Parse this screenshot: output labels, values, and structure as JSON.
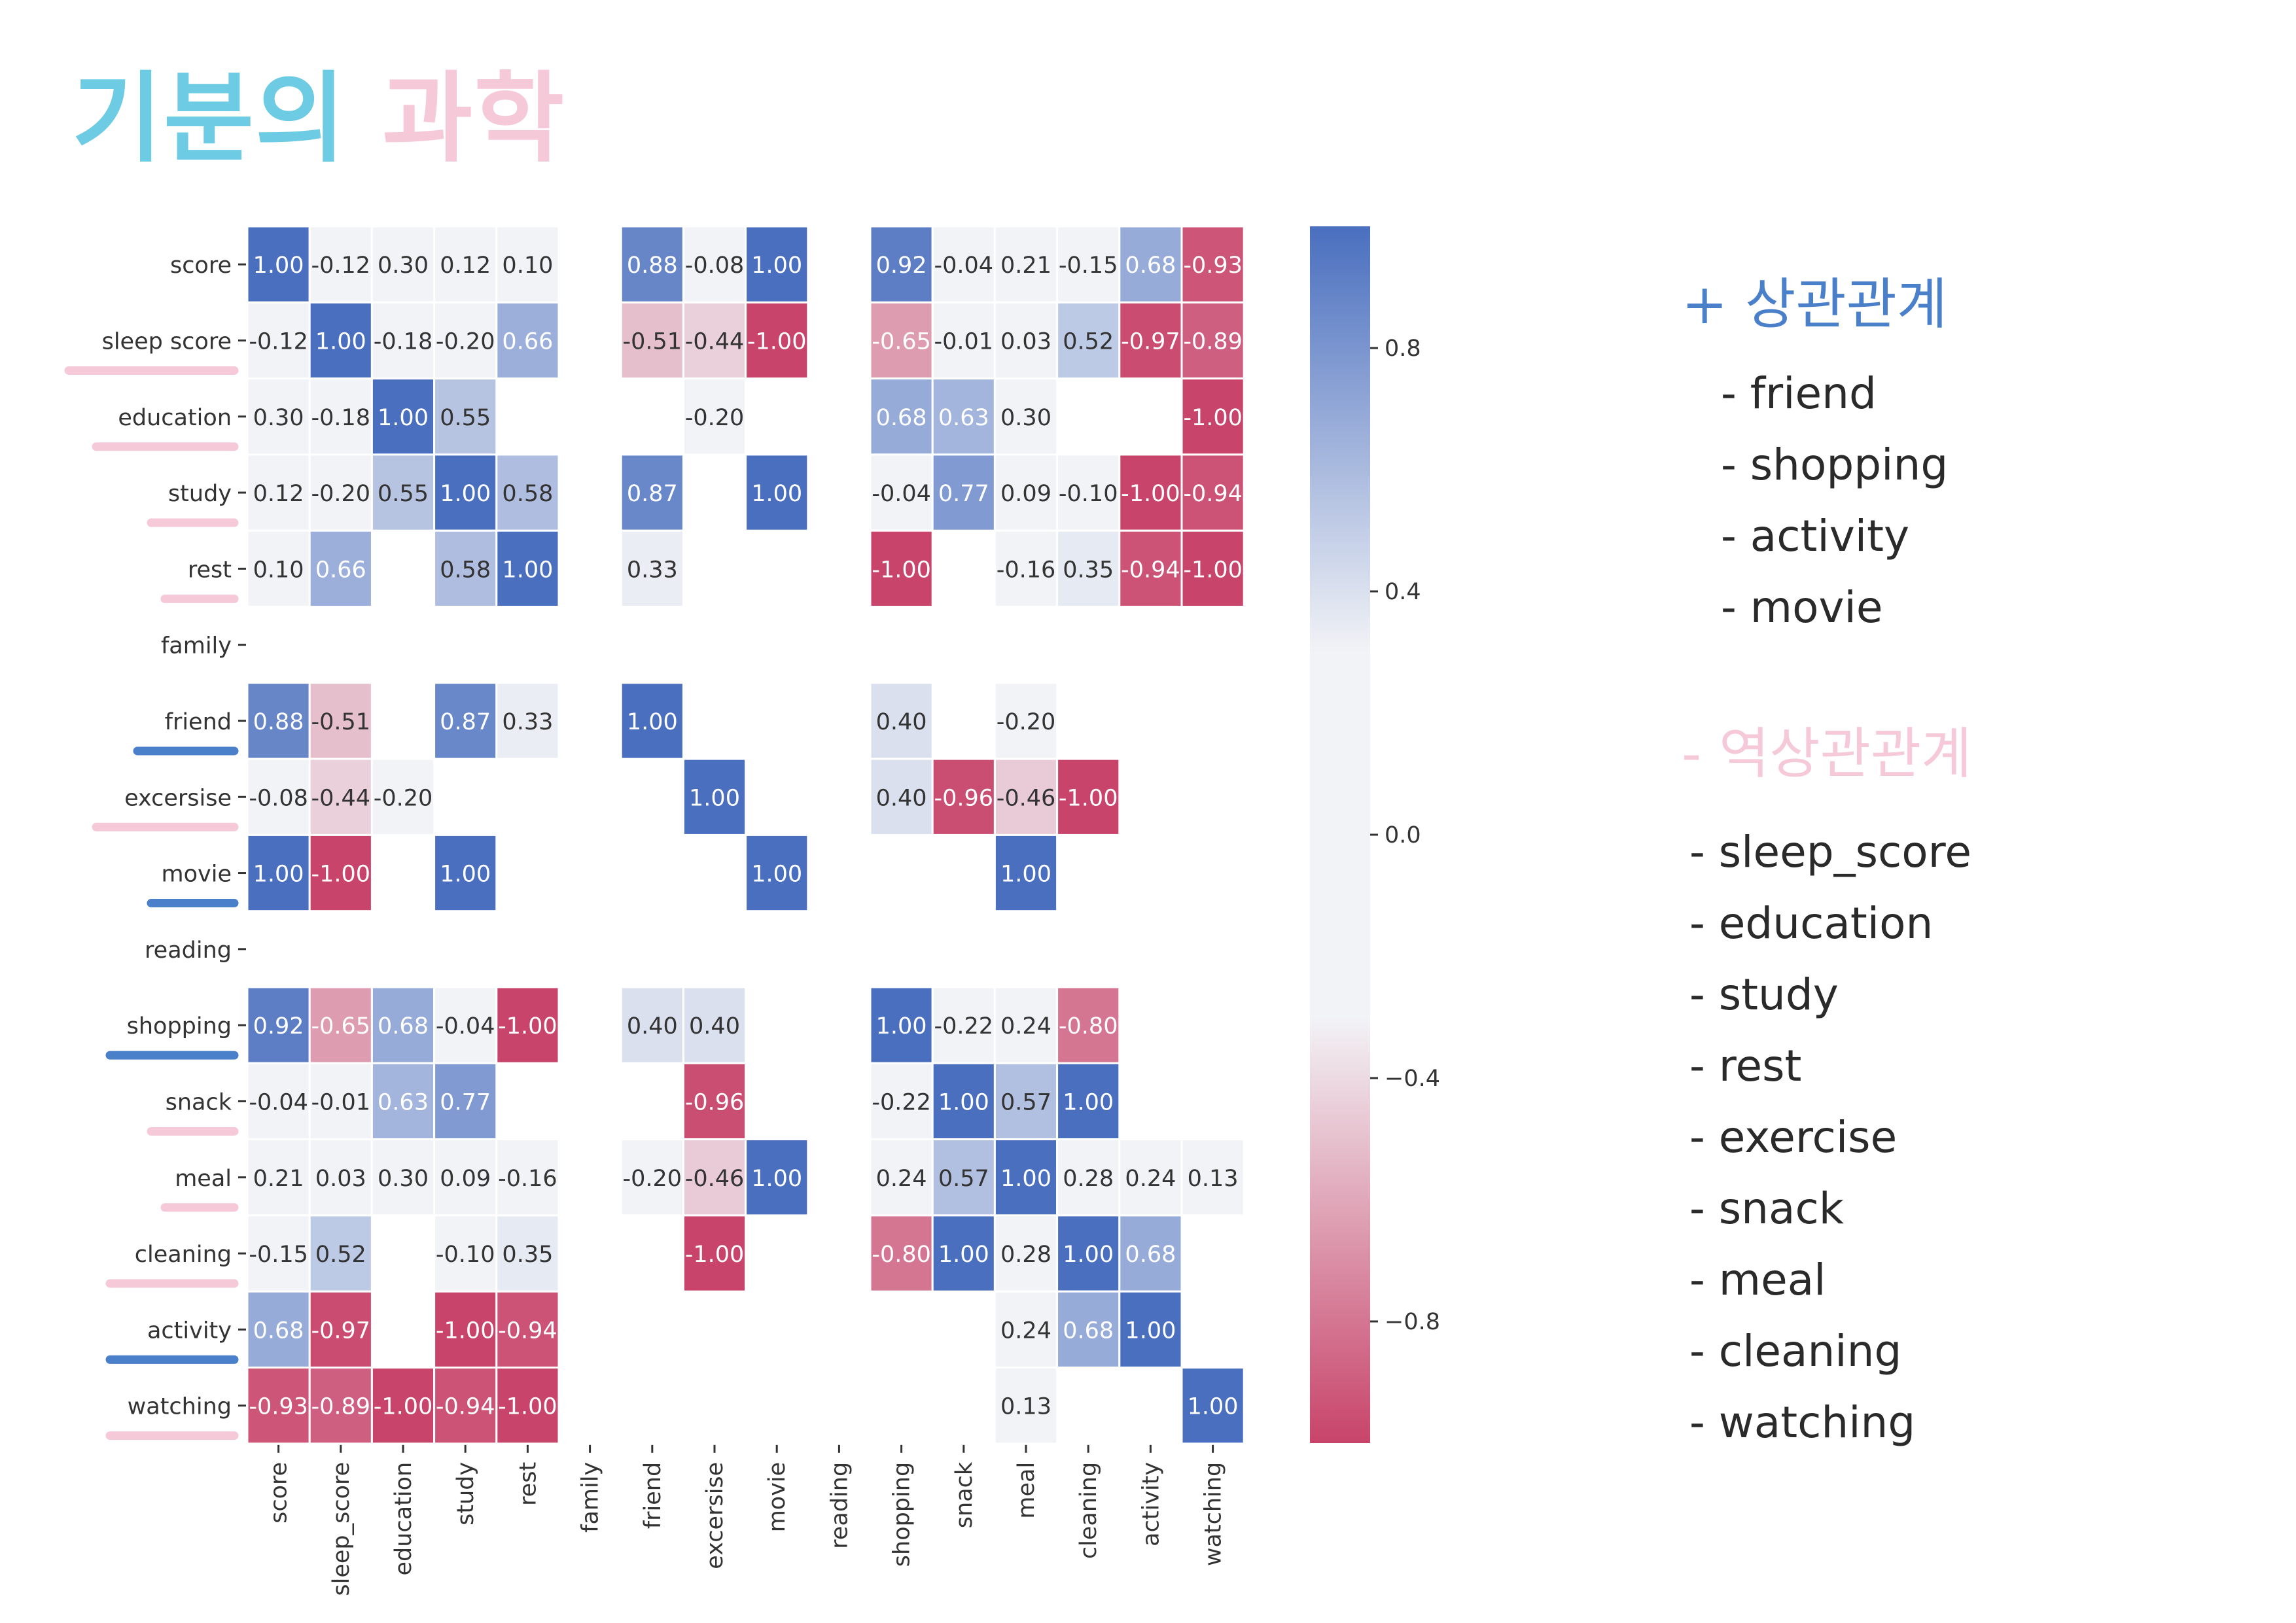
{
  "page": {
    "title_part1": "기분의",
    "title_part2": "과학"
  },
  "legend_blocks": {
    "positive": {
      "heading": "+ 상관관계",
      "items": [
        "- friend",
        "- shopping",
        "- activity",
        "- movie"
      ]
    },
    "negative": {
      "heading": "- 역상관관계",
      "items": [
        "- sleep_score",
        "- education",
        "- study",
        "- rest",
        "- exercise",
        "- snack",
        "- meal",
        "- cleaning",
        "- watching"
      ]
    }
  },
  "colors": {
    "positive": "#4a6fbf",
    "neutral": "#f2f3f6",
    "negative": "#c8446a",
    "underline_pos": "#4a7fc9",
    "underline_neg": "#f6c9d8"
  },
  "chart_data": {
    "type": "heatmap",
    "title": "",
    "row_labels": [
      "score",
      "sleep_score",
      "education",
      "study",
      "rest",
      "family",
      "friend",
      "excersise",
      "movie",
      "reading",
      "shopping",
      "snack",
      "meal",
      "cleaning",
      "activity",
      "watching"
    ],
    "row_label_text": [
      "score",
      "sleep score",
      "education",
      "study",
      "rest",
      "family",
      "friend",
      "excersise",
      "movie",
      "reading",
      "shopping",
      "snack",
      "meal",
      "cleaning",
      "activity",
      "watching"
    ],
    "col_labels": [
      "score",
      "sleep_score",
      "education",
      "study",
      "rest",
      "family",
      "friend",
      "excersise",
      "movie",
      "reading",
      "shopping",
      "snack",
      "meal",
      "cleaning",
      "activity",
      "watching"
    ],
    "row_highlight": [
      "none",
      "neg",
      "neg",
      "neg",
      "neg",
      "none",
      "pos",
      "neg",
      "pos",
      "none",
      "pos",
      "neg",
      "neg",
      "neg",
      "pos",
      "neg"
    ],
    "values": [
      [
        1.0,
        -0.12,
        0.3,
        0.12,
        0.1,
        null,
        0.88,
        -0.08,
        1.0,
        null,
        0.92,
        -0.04,
        0.21,
        -0.15,
        0.68,
        -0.93
      ],
      [
        -0.12,
        1.0,
        -0.18,
        -0.2,
        0.66,
        null,
        -0.51,
        -0.44,
        -1.0,
        null,
        -0.65,
        -0.01,
        0.03,
        0.52,
        -0.97,
        -0.89
      ],
      [
        0.3,
        -0.18,
        1.0,
        0.55,
        null,
        null,
        null,
        -0.2,
        null,
        null,
        0.68,
        0.63,
        0.3,
        null,
        null,
        -1.0
      ],
      [
        0.12,
        -0.2,
        0.55,
        1.0,
        0.58,
        null,
        0.87,
        null,
        1.0,
        null,
        -0.04,
        0.77,
        0.09,
        -0.1,
        -1.0,
        -0.94
      ],
      [
        0.1,
        0.66,
        null,
        0.58,
        1.0,
        null,
        0.33,
        null,
        null,
        null,
        -1.0,
        null,
        -0.16,
        0.35,
        -0.94,
        -1.0
      ],
      [
        null,
        null,
        null,
        null,
        null,
        null,
        null,
        null,
        null,
        null,
        null,
        null,
        null,
        null,
        null,
        null
      ],
      [
        0.88,
        -0.51,
        null,
        0.87,
        0.33,
        null,
        1.0,
        null,
        null,
        null,
        0.4,
        null,
        -0.2,
        null,
        null,
        null
      ],
      [
        -0.08,
        -0.44,
        -0.2,
        null,
        null,
        null,
        null,
        1.0,
        null,
        null,
        0.4,
        -0.96,
        -0.46,
        -1.0,
        null,
        null
      ],
      [
        1.0,
        -1.0,
        null,
        1.0,
        null,
        null,
        null,
        null,
        1.0,
        null,
        null,
        null,
        1.0,
        null,
        null,
        null
      ],
      [
        null,
        null,
        null,
        null,
        null,
        null,
        null,
        null,
        null,
        null,
        null,
        null,
        null,
        null,
        null,
        null
      ],
      [
        0.92,
        -0.65,
        0.68,
        -0.04,
        -1.0,
        null,
        0.4,
        0.4,
        null,
        null,
        1.0,
        -0.22,
        0.24,
        -0.8,
        null,
        null
      ],
      [
        -0.04,
        -0.01,
        0.63,
        0.77,
        null,
        null,
        null,
        -0.96,
        null,
        null,
        -0.22,
        1.0,
        0.57,
        1.0,
        null,
        null
      ],
      [
        0.21,
        0.03,
        0.3,
        0.09,
        -0.16,
        null,
        -0.2,
        -0.46,
        1.0,
        null,
        0.24,
        0.57,
        1.0,
        0.28,
        0.24,
        0.13
      ],
      [
        -0.15,
        0.52,
        null,
        -0.1,
        0.35,
        null,
        null,
        -1.0,
        null,
        null,
        -0.8,
        1.0,
        0.28,
        1.0,
        0.68,
        null
      ],
      [
        0.68,
        -0.97,
        null,
        -1.0,
        -0.94,
        null,
        null,
        null,
        null,
        null,
        null,
        null,
        0.24,
        0.68,
        1.0,
        null
      ],
      [
        -0.93,
        -0.89,
        -1.0,
        -0.94,
        -1.0,
        null,
        null,
        null,
        null,
        null,
        null,
        null,
        0.13,
        null,
        null,
        1.0
      ]
    ],
    "colorbar": {
      "range": [
        -1.0,
        1.0
      ],
      "ticks": [
        0.8,
        0.4,
        0.0,
        -0.4,
        -0.8
      ],
      "tick_labels": [
        "0.8",
        "0.4",
        "0.0",
        "−0.4",
        "−0.8"
      ]
    },
    "grid": false,
    "legend_position": "right"
  }
}
